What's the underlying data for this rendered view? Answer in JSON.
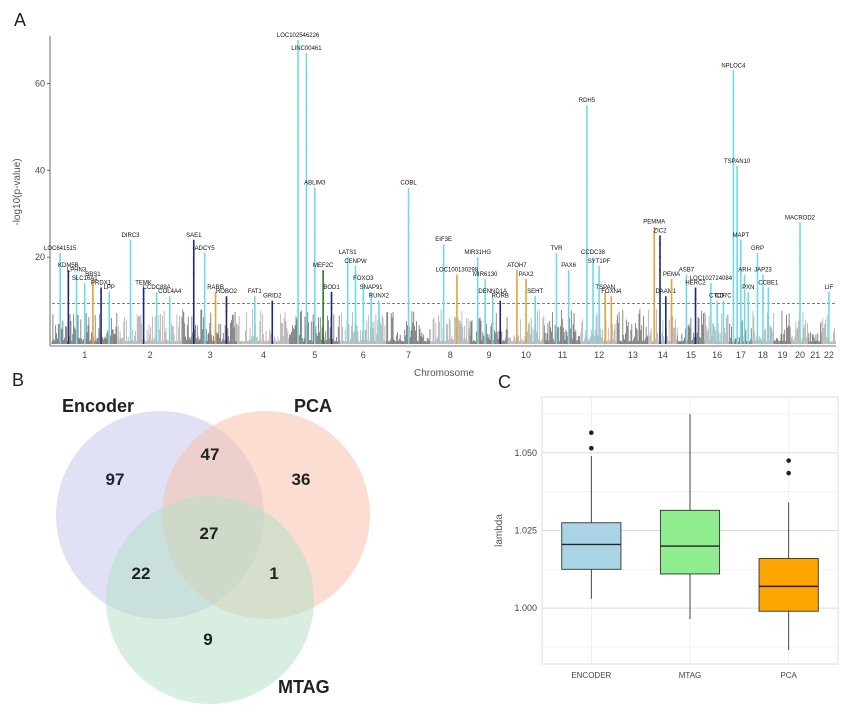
{
  "panels": {
    "a": "A",
    "b": "B",
    "c": "C"
  },
  "colors": {
    "cyan": "#6fdbe8",
    "navy": "#1a2a7a",
    "orange": "#e3a43a",
    "green": "#2e7d32",
    "grey_dark": "#7d7d7d",
    "grey_light": "#b7b7b7",
    "venn_encoder": "#c7c9ec",
    "venn_pca": "#f8c3ab",
    "venn_mtag": "#b6e0c8",
    "box_encoder": "#a9d4e6",
    "box_mtag": "#8fec8f",
    "box_pca": "#ffa500"
  },
  "chart_data": [
    {
      "type": "scatter",
      "subtype": "manhattan",
      "xlabel": "Chromosome",
      "ylabel": "-log10(p-value)",
      "ylim": [
        0,
        70
      ],
      "yticks": [
        20,
        40,
        60
      ],
      "threshold": 9.3,
      "grid": false,
      "chromosomes": [
        "1",
        "2",
        "3",
        "4",
        "5",
        "6",
        "7",
        "8",
        "9",
        "10",
        "11",
        "12",
        "13",
        "14",
        "15",
        "16",
        "17",
        "18",
        "19",
        "20",
        "21",
        "22"
      ],
      "peaks": [
        {
          "label": "LOC102546226",
          "chr": "5",
          "y": 70,
          "color": "cyan"
        },
        {
          "label": "LINC00461",
          "chr": "5",
          "y": 67,
          "color": "cyan"
        },
        {
          "label": "NPLOC4",
          "chr": "17",
          "y": 63,
          "color": "cyan"
        },
        {
          "label": "RDH5",
          "chr": "12",
          "y": 55,
          "color": "cyan"
        },
        {
          "label": "TSPAN10",
          "chr": "17",
          "y": 41,
          "color": "cyan"
        },
        {
          "label": "ABLIM3",
          "chr": "5",
          "y": 36,
          "color": "cyan"
        },
        {
          "label": "COBL",
          "chr": "7",
          "y": 36,
          "color": "cyan"
        },
        {
          "label": "MACROD2",
          "chr": "20",
          "y": 28,
          "color": "cyan"
        },
        {
          "label": "PEMMA",
          "chr": "14",
          "y": 27,
          "color": "orange"
        },
        {
          "label": "MAPT",
          "chr": "17",
          "y": 24,
          "color": "cyan"
        },
        {
          "label": "DIRC3",
          "chr": "2",
          "y": 24,
          "color": "cyan"
        },
        {
          "label": "SAE1",
          "chr": "3",
          "y": 24,
          "color": "navy"
        },
        {
          "label": "EIF3E",
          "chr": "8",
          "y": 23,
          "color": "cyan"
        },
        {
          "label": "ZIC2",
          "chr": "14",
          "y": 25,
          "color": "navy"
        },
        {
          "label": "GRP",
          "chr": "18",
          "y": 21,
          "color": "cyan"
        },
        {
          "label": "ADCY5",
          "chr": "3",
          "y": 21,
          "color": "cyan"
        },
        {
          "label": "LOC641515",
          "chr": "1",
          "y": 21,
          "color": "cyan"
        },
        {
          "label": "TVR",
          "chr": "11",
          "y": 21,
          "color": "cyan"
        },
        {
          "label": "MIR31HG",
          "chr": "9",
          "y": 20,
          "color": "cyan"
        },
        {
          "label": "CCDC38",
          "chr": "12",
          "y": 20,
          "color": "cyan"
        },
        {
          "label": "LATS1",
          "chr": "6",
          "y": 20,
          "color": "cyan"
        },
        {
          "label": "MEF2C",
          "chr": "5",
          "y": 17,
          "color": "green"
        },
        {
          "label": "CENPW",
          "chr": "6",
          "y": 18,
          "color": "cyan"
        },
        {
          "label": "SYT1PF",
          "chr": "12",
          "y": 18,
          "color": "cyan"
        },
        {
          "label": "KDM5B",
          "chr": "1",
          "y": 17,
          "color": "navy"
        },
        {
          "label": "LOC100130298",
          "chr": "8",
          "y": 16,
          "color": "orange"
        },
        {
          "label": "ATOH7",
          "chr": "10",
          "y": 17,
          "color": "orange"
        },
        {
          "label": "PAX6",
          "chr": "11",
          "y": 17,
          "color": "cyan"
        },
        {
          "label": "ASB7",
          "chr": "15",
          "y": 16,
          "color": "cyan"
        },
        {
          "label": "ARH",
          "chr": "17",
          "y": 16,
          "color": "cyan"
        },
        {
          "label": "JAP23",
          "chr": "18",
          "y": 16,
          "color": "cyan"
        },
        {
          "label": "LPHN3",
          "chr": "1",
          "y": 16,
          "color": "cyan"
        },
        {
          "label": "PAX2",
          "chr": "10",
          "y": 15,
          "color": "orange"
        },
        {
          "label": "MIR6130",
          "chr": "9",
          "y": 15,
          "color": "cyan"
        },
        {
          "label": "SLC16A1",
          "chr": "1",
          "y": 14,
          "color": "cyan"
        },
        {
          "label": "LOC102724084",
          "chr": "16",
          "y": 14,
          "color": "cyan"
        },
        {
          "label": "HERC2",
          "chr": "15",
          "y": 13,
          "color": "navy"
        },
        {
          "label": "BBS1",
          "chr": "1",
          "y": 15,
          "color": "orange"
        },
        {
          "label": "FOXO3",
          "chr": "6",
          "y": 14,
          "color": "cyan"
        },
        {
          "label": "PRDX1",
          "chr": "1",
          "y": 13,
          "color": "navy"
        },
        {
          "label": "LPP",
          "chr": "1",
          "y": 12,
          "color": "cyan"
        },
        {
          "label": "TEMK",
          "chr": "2",
          "y": 13,
          "color": "navy"
        },
        {
          "label": "CCDC88A",
          "chr": "2",
          "y": 12,
          "color": "cyan"
        },
        {
          "label": "RARB",
          "chr": "3",
          "y": 12,
          "color": "orange"
        },
        {
          "label": "BOD1",
          "chr": "5",
          "y": 12,
          "color": "navy"
        },
        {
          "label": "SNAP91",
          "chr": "6",
          "y": 12,
          "color": "cyan"
        },
        {
          "label": "TSPAN",
          "chr": "12",
          "y": 12,
          "color": "orange"
        },
        {
          "label": "FOXN4",
          "chr": "12",
          "y": 11,
          "color": "orange"
        },
        {
          "label": "CCBE1",
          "chr": "18",
          "y": 13,
          "color": "cyan"
        },
        {
          "label": "LIF",
          "chr": "22",
          "y": 12,
          "color": "cyan"
        },
        {
          "label": "ROBO2",
          "chr": "3",
          "y": 11,
          "color": "navy"
        },
        {
          "label": "COL4A4",
          "chr": "2",
          "y": 11,
          "color": "cyan"
        },
        {
          "label": "PXN",
          "chr": "17",
          "y": 12,
          "color": "cyan"
        },
        {
          "label": "DAAM1",
          "chr": "14",
          "y": 11,
          "color": "navy"
        },
        {
          "label": "FAT1",
          "chr": "4",
          "y": 11,
          "color": "cyan"
        },
        {
          "label": "GRID2",
          "chr": "4",
          "y": 10,
          "color": "navy"
        },
        {
          "label": "RUNX2",
          "chr": "6",
          "y": 10,
          "color": "cyan"
        },
        {
          "label": "SEHT",
          "chr": "10",
          "y": 11,
          "color": "cyan"
        },
        {
          "label": "CTCF",
          "chr": "16",
          "y": 10,
          "color": "cyan"
        },
        {
          "label": "DENND1A",
          "chr": "9",
          "y": 11,
          "color": "cyan"
        },
        {
          "label": "RORB",
          "chr": "9",
          "y": 10,
          "color": "navy"
        },
        {
          "label": "CD7C",
          "chr": "16",
          "y": 10,
          "color": "cyan"
        },
        {
          "label": "PEMA",
          "chr": "14",
          "y": 15,
          "color": "orange"
        }
      ]
    },
    {
      "type": "venn",
      "sets": [
        {
          "name": "Encoder",
          "color": "venn_encoder"
        },
        {
          "name": "PCA",
          "color": "venn_pca"
        },
        {
          "name": "MTAG",
          "color": "venn_mtag"
        }
      ],
      "regions": [
        {
          "sets": [
            "Encoder"
          ],
          "value": 97
        },
        {
          "sets": [
            "PCA"
          ],
          "value": 36
        },
        {
          "sets": [
            "MTAG"
          ],
          "value": 9
        },
        {
          "sets": [
            "Encoder",
            "PCA"
          ],
          "value": 47
        },
        {
          "sets": [
            "Encoder",
            "MTAG"
          ],
          "value": 22
        },
        {
          "sets": [
            "PCA",
            "MTAG"
          ],
          "value": 1
        },
        {
          "sets": [
            "Encoder",
            "PCA",
            "MTAG"
          ],
          "value": 27
        }
      ]
    },
    {
      "type": "box",
      "ylabel": "lambda",
      "ylim": [
        0.982,
        1.068
      ],
      "yticks": [
        "1.000",
        "1.025",
        "1.050"
      ],
      "grid": true,
      "categories": [
        "ENCODER",
        "MTAG",
        "PCA"
      ],
      "boxes": [
        {
          "name": "ENCODER",
          "min": 1.003,
          "q1": 1.0125,
          "median": 1.0205,
          "q3": 1.0275,
          "max": 1.049,
          "outliers": [
            1.0515,
            1.0565
          ],
          "color": "box_encoder"
        },
        {
          "name": "MTAG",
          "min": 0.9965,
          "q1": 1.011,
          "median": 1.02,
          "q3": 1.0315,
          "max": 1.0625,
          "outliers": [],
          "color": "box_mtag"
        },
        {
          "name": "PCA",
          "min": 0.9865,
          "q1": 0.999,
          "median": 1.007,
          "q3": 1.016,
          "max": 1.034,
          "outliers": [
            1.0435,
            1.0475
          ],
          "color": "box_pca"
        }
      ]
    }
  ]
}
